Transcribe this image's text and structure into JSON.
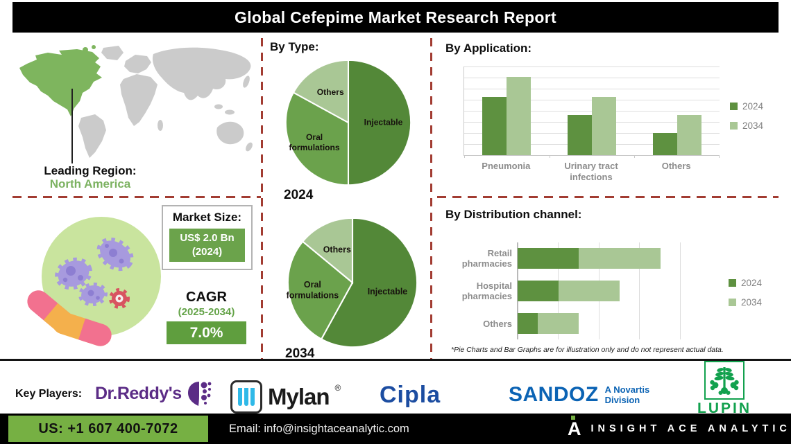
{
  "title": "Global Cefepime Market Research Report",
  "leading_region": {
    "label": "Leading Region:",
    "value": "North America"
  },
  "market": {
    "market_size_label": "Market Size:",
    "market_size_value": "US$ 2.0 Bn",
    "market_size_year": "(2024)",
    "cagr_label": "CAGR",
    "cagr_period": "(2025-2034)",
    "cagr_value": "7.0%"
  },
  "sections": {
    "by_type": "By Type:",
    "by_application": "By Application:",
    "by_distribution": "By Distribution channel:"
  },
  "footnote": "*Pie Charts and Bar Graphs are for illustration only and do not represent actual data.",
  "key_players": {
    "label": "Key Players:",
    "dr_reddys": "Dr.Reddy's",
    "mylan": "Mylan",
    "mylan_reg": "®",
    "cipla": "Cipla",
    "sandoz": "SANDOZ",
    "sandoz_sub1": "A Novartis",
    "sandoz_sub2": "Division",
    "lupin": "LUPIN"
  },
  "footer": {
    "phone": "US: +1 607 400-7072",
    "email": "Email: info@insightaceanalytic.com",
    "brand_letter": "A",
    "brand": "INSIGHT ACE ANALYTIC"
  },
  "colors": {
    "green_dark": "#5e9140",
    "green_mid": "#6ba24c",
    "green_light": "#a9c795",
    "dashed_divider_red": "#a23c32",
    "map_highlight_green": "#7eb55e",
    "map_gray": "#cbcbcb",
    "footer_green": "#76b043",
    "dr_reddys_purple": "#5b2c86",
    "mylan_cyan": "#2fb9e8",
    "cipla_blue": "#1c4da1",
    "sandoz_blue": "#0b63b4",
    "lupin_green": "#12a14e"
  },
  "chart_data": [
    {
      "id": "pie-2024",
      "type": "pie",
      "title": "2024",
      "labels": [
        "Injectable",
        "Oral\nformulations",
        "Others"
      ],
      "values": [
        50,
        33,
        17
      ],
      "colors": [
        "#538838",
        "#6ba24c",
        "#a9c795"
      ],
      "label_r": [
        0.56,
        0.63,
        0.56
      ],
      "note": "share of market by type, 2024"
    },
    {
      "id": "pie-2034",
      "type": "pie",
      "title": "2034",
      "labels": [
        "Injectable",
        "Oral\nformulations",
        "Others"
      ],
      "values": [
        58,
        28,
        14
      ],
      "colors": [
        "#538838",
        "#6ba24c",
        "#a9c795"
      ],
      "label_r": [
        0.56,
        0.63,
        0.56
      ],
      "note": "share of market by type, 2034"
    },
    {
      "id": "application",
      "type": "bar",
      "title": "By Application:",
      "categories": [
        "Pneumonia",
        "Urinary tract\ninfections",
        "Others"
      ],
      "series": [
        {
          "name": "2024",
          "color": "#5e9140",
          "values": [
            66,
            45,
            25
          ]
        },
        {
          "name": "2034",
          "color": "#a9c795",
          "values": [
            88,
            66,
            45
          ]
        }
      ],
      "ylim": [
        0,
        100
      ],
      "grid": true,
      "legend_position": "right"
    },
    {
      "id": "distribution",
      "type": "stacked-bar-horizontal",
      "title": "By Distribution channel:",
      "categories": [
        "Retail pharmacies",
        "Hospital\npharmacies",
        "Others"
      ],
      "series": [
        {
          "name": "2024",
          "color": "#5e9140",
          "values": [
            30,
            20,
            10
          ]
        },
        {
          "name": "2034",
          "color": "#a9c795",
          "values": [
            40,
            30,
            20
          ]
        }
      ],
      "xlim": [
        0,
        80
      ],
      "grid": true,
      "legend_position": "right"
    }
  ]
}
